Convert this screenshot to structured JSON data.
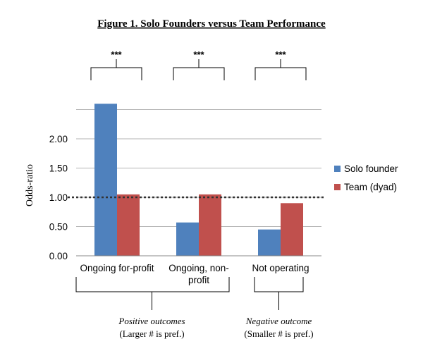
{
  "figure_title": "Figure 1. Solo Founders versus Team Performance",
  "significance_marker": "***",
  "chart_data": {
    "type": "bar",
    "title": "Figure 1. Solo Founders versus Team Performance",
    "xlabel": "",
    "ylabel": "Odds-ratio",
    "categories": [
      "Ongoing for-profit",
      "Ongoing, non-profit",
      "Not operating"
    ],
    "category_lines": [
      [
        "Ongoing for-profit"
      ],
      [
        "Ongoing, non-",
        "profit"
      ],
      [
        "Not operating"
      ]
    ],
    "series": [
      {
        "name": "Solo founder",
        "color": "#4F81BD",
        "values": [
          2.6,
          0.57,
          0.45
        ]
      },
      {
        "name": "Team (dyad)",
        "color": "#C0504D",
        "values": [
          1.05,
          1.05,
          0.9
        ]
      }
    ],
    "ylim": [
      0,
      2.5
    ],
    "yticks": [
      "0.00",
      "0.50",
      "1.00",
      "1.50",
      "2.00"
    ],
    "reference_line": 1.0,
    "grid": true,
    "legend_position": "right"
  },
  "groups": [
    {
      "lines": [
        "Positive outcomes",
        "(Larger # is pref.)"
      ]
    },
    {
      "lines": [
        "Negative outcome",
        "(Smaller # is pref.)"
      ]
    }
  ]
}
